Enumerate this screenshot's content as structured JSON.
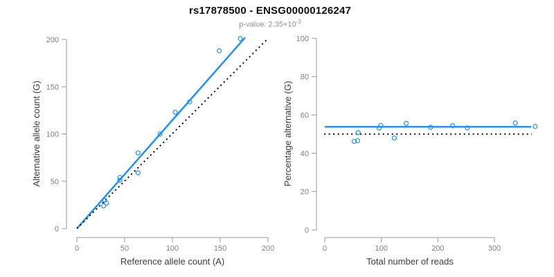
{
  "figure": {
    "title": "rs17878500 - ENSG00000126247",
    "subtitle": {
      "prefix": "p-value: 2.35×10",
      "exponent": "-3"
    }
  },
  "colors": {
    "accent_blue": "#1e90ff",
    "reference_black": "#000000",
    "axis_gray": "#999999",
    "tick_label_gray": "#7f7f7f",
    "axis_title_dark": "#3c3c3c"
  },
  "chart_data": [
    {
      "type": "scatter",
      "xlabel": "Reference allele count (A)",
      "ylabel": "Alternative allele count (G)",
      "xlim": [
        0,
        200
      ],
      "ylim": [
        0,
        200
      ],
      "xticks": [
        0,
        50,
        100,
        150,
        200
      ],
      "yticks": [
        0,
        50,
        100,
        150,
        200
      ],
      "grid": false,
      "legend": null,
      "points": [
        [
          28,
          24
        ],
        [
          29,
          30
        ],
        [
          31,
          27
        ],
        [
          45,
          51
        ],
        [
          45,
          54
        ],
        [
          64,
          59
        ],
        [
          64,
          80
        ],
        [
          87,
          100
        ],
        [
          103,
          123
        ],
        [
          118,
          134
        ],
        [
          149,
          188
        ],
        [
          171,
          201
        ]
      ],
      "lines": [
        {
          "name": "regression-line",
          "color": "accent",
          "width": 2.5,
          "dash": "",
          "pts": [
            [
              0.5,
              0.5
            ],
            [
              176,
              202
            ]
          ]
        },
        {
          "name": "identity-line",
          "color": "reference",
          "width": 2,
          "dash": "2 4.5",
          "pts": [
            [
              0,
              0
            ],
            [
              200,
              201
            ]
          ]
        }
      ]
    },
    {
      "type": "scatter",
      "xlabel": "Total number of reads",
      "ylabel": "Percentage alternative (G)",
      "xlim": [
        0,
        300
      ],
      "ylim": [
        0,
        100
      ],
      "xticks": [
        0,
        100,
        200,
        300
      ],
      "yticks": [
        0,
        20,
        40,
        60,
        80,
        100
      ],
      "grid": false,
      "legend": null,
      "points": [
        [
          52,
          46.2
        ],
        [
          58,
          46.6
        ],
        [
          59,
          50.8
        ],
        [
          96,
          53.1
        ],
        [
          99,
          54.5
        ],
        [
          123,
          48.0
        ],
        [
          144,
          55.6
        ],
        [
          187,
          53.5
        ],
        [
          226,
          54.4
        ],
        [
          252,
          53.2
        ],
        [
          337,
          55.8
        ],
        [
          372,
          54.0
        ]
      ],
      "lines": [
        {
          "name": "mean-line",
          "color": "accent",
          "width": 2.5,
          "dash": "",
          "pts": [
            [
              0,
              53.8
            ],
            [
              365,
              53.8
            ]
          ]
        },
        {
          "name": "fifty-percent-line",
          "color": "reference",
          "width": 2,
          "dash": "2 4.5",
          "pts": [
            [
              -1,
              50
            ],
            [
              366,
              50
            ]
          ]
        }
      ]
    }
  ]
}
